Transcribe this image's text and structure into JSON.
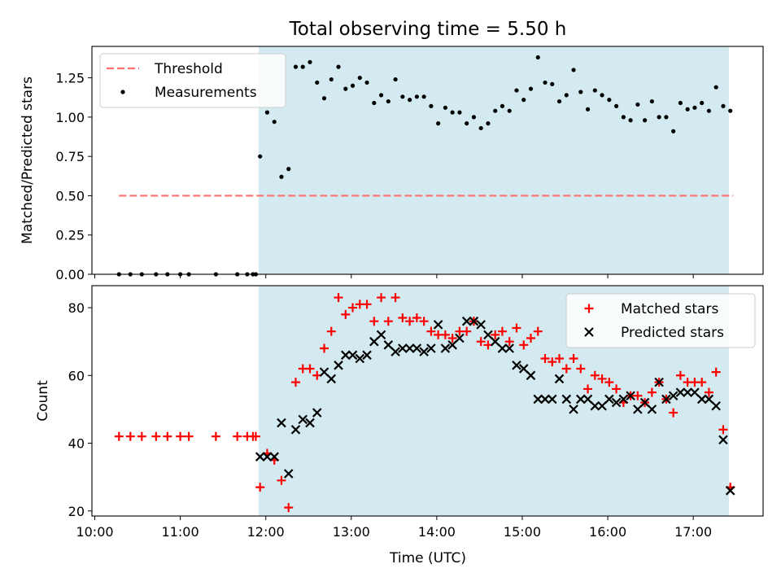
{
  "figure": {
    "title": "Total observing time = 5.50 h",
    "xlabel": "Time (UTC)",
    "shade_color": "#d3ebf0",
    "x_ticks": [
      "10:00",
      "11:00",
      "12:00",
      "13:00",
      "14:00",
      "15:00",
      "16:00",
      "17:00"
    ]
  },
  "chart_data": [
    {
      "type": "scatter",
      "ylabel": "Matched/Predicted stars",
      "ylim": [
        0,
        1.45
      ],
      "xlim": [
        "09:58",
        "17:49"
      ],
      "y_ticks": [
        "0.00",
        "0.25",
        "0.50",
        "0.75",
        "1.00",
        "1.25"
      ],
      "shaded_interval": [
        "11:55",
        "17:25"
      ],
      "legend": {
        "placement": "top-left"
      },
      "series": [
        {
          "name": "Threshold",
          "style": "dashed-line",
          "color": "#ff7070",
          "points": [
            [
              "10:17",
              0.5
            ],
            [
              "17:28",
              0.5
            ]
          ]
        },
        {
          "name": "Measurements",
          "style": "dot",
          "color": "#000000",
          "points": [
            [
              "10:17",
              0.0
            ],
            [
              "10:25",
              0.0
            ],
            [
              "10:33",
              0.0
            ],
            [
              "10:43",
              0.0
            ],
            [
              "10:51",
              0.0
            ],
            [
              "11:00",
              0.0
            ],
            [
              "11:06",
              0.0
            ],
            [
              "11:25",
              0.0
            ],
            [
              "11:40",
              0.0
            ],
            [
              "11:47",
              0.0
            ],
            [
              "11:51",
              0.0
            ],
            [
              "11:53",
              0.0
            ],
            [
              "11:56",
              0.75
            ],
            [
              "12:01",
              1.03
            ],
            [
              "12:06",
              0.97
            ],
            [
              "12:11",
              0.62
            ],
            [
              "12:16",
              0.67
            ],
            [
              "12:21",
              1.32
            ],
            [
              "12:26",
              1.32
            ],
            [
              "12:31",
              1.35
            ],
            [
              "12:36",
              1.22
            ],
            [
              "12:41",
              1.12
            ],
            [
              "12:46",
              1.24
            ],
            [
              "12:51",
              1.32
            ],
            [
              "12:56",
              1.18
            ],
            [
              "13:01",
              1.2
            ],
            [
              "13:06",
              1.25
            ],
            [
              "13:11",
              1.22
            ],
            [
              "13:16",
              1.09
            ],
            [
              "13:21",
              1.14
            ],
            [
              "13:26",
              1.1
            ],
            [
              "13:31",
              1.24
            ],
            [
              "13:36",
              1.13
            ],
            [
              "13:41",
              1.11
            ],
            [
              "13:46",
              1.13
            ],
            [
              "13:51",
              1.13
            ],
            [
              "13:56",
              1.07
            ],
            [
              "14:01",
              0.96
            ],
            [
              "14:06",
              1.06
            ],
            [
              "14:11",
              1.03
            ],
            [
              "14:16",
              1.03
            ],
            [
              "14:21",
              0.96
            ],
            [
              "14:26",
              1.0
            ],
            [
              "14:31",
              0.93
            ],
            [
              "14:36",
              0.96
            ],
            [
              "14:41",
              1.04
            ],
            [
              "14:46",
              1.07
            ],
            [
              "14:51",
              1.04
            ],
            [
              "14:56",
              1.17
            ],
            [
              "15:01",
              1.11
            ],
            [
              "15:06",
              1.18
            ],
            [
              "15:11",
              1.38
            ],
            [
              "15:16",
              1.22
            ],
            [
              "15:21",
              1.21
            ],
            [
              "15:26",
              1.1
            ],
            [
              "15:31",
              1.14
            ],
            [
              "15:36",
              1.3
            ],
            [
              "15:41",
              1.16
            ],
            [
              "15:46",
              1.05
            ],
            [
              "15:51",
              1.17
            ],
            [
              "15:56",
              1.14
            ],
            [
              "16:01",
              1.11
            ],
            [
              "16:06",
              1.07
            ],
            [
              "16:11",
              1.0
            ],
            [
              "16:16",
              0.98
            ],
            [
              "16:21",
              1.08
            ],
            [
              "16:26",
              0.98
            ],
            [
              "16:31",
              1.1
            ],
            [
              "16:36",
              1.0
            ],
            [
              "16:41",
              1.0
            ],
            [
              "16:46",
              0.91
            ],
            [
              "16:51",
              1.09
            ],
            [
              "16:56",
              1.05
            ],
            [
              "17:01",
              1.06
            ],
            [
              "17:06",
              1.09
            ],
            [
              "17:11",
              1.04
            ],
            [
              "17:16",
              1.19
            ],
            [
              "17:21",
              1.07
            ],
            [
              "17:26",
              1.04
            ]
          ]
        }
      ]
    },
    {
      "type": "scatter",
      "ylabel": "Count",
      "ylim": [
        18.5,
        86.5
      ],
      "xlim": [
        "09:58",
        "17:49"
      ],
      "y_ticks": [
        "20",
        "40",
        "60",
        "80"
      ],
      "shaded_interval": [
        "11:55",
        "17:25"
      ],
      "legend": {
        "placement": "top-right"
      },
      "series": [
        {
          "name": "Matched stars",
          "style": "plus",
          "color": "#ff0000",
          "points": [
            [
              "10:17",
              42
            ],
            [
              "10:25",
              42
            ],
            [
              "10:33",
              42
            ],
            [
              "10:43",
              42
            ],
            [
              "10:51",
              42
            ],
            [
              "11:00",
              42
            ],
            [
              "11:06",
              42
            ],
            [
              "11:25",
              42
            ],
            [
              "11:40",
              42
            ],
            [
              "11:47",
              42
            ],
            [
              "11:51",
              42
            ],
            [
              "11:53",
              42
            ],
            [
              "11:56",
              27
            ],
            [
              "12:01",
              37
            ],
            [
              "12:06",
              35
            ],
            [
              "12:11",
              29
            ],
            [
              "12:16",
              21
            ],
            [
              "12:21",
              58
            ],
            [
              "12:26",
              62
            ],
            [
              "12:31",
              62
            ],
            [
              "12:36",
              60
            ],
            [
              "12:41",
              68
            ],
            [
              "12:46",
              73
            ],
            [
              "12:51",
              83
            ],
            [
              "12:56",
              78
            ],
            [
              "13:01",
              80
            ],
            [
              "13:06",
              81
            ],
            [
              "13:11",
              81
            ],
            [
              "13:16",
              76
            ],
            [
              "13:21",
              83
            ],
            [
              "13:26",
              76
            ],
            [
              "13:31",
              83
            ],
            [
              "13:36",
              77
            ],
            [
              "13:41",
              76
            ],
            [
              "13:46",
              77
            ],
            [
              "13:51",
              76
            ],
            [
              "13:56",
              73
            ],
            [
              "14:01",
              72
            ],
            [
              "14:06",
              72
            ],
            [
              "14:11",
              71
            ],
            [
              "14:16",
              73
            ],
            [
              "14:21",
              73
            ],
            [
              "14:26",
              76
            ],
            [
              "14:31",
              70
            ],
            [
              "14:36",
              69
            ],
            [
              "14:41",
              72
            ],
            [
              "14:46",
              73
            ],
            [
              "14:51",
              70
            ],
            [
              "14:56",
              74
            ],
            [
              "15:01",
              69
            ],
            [
              "15:06",
              71
            ],
            [
              "15:11",
              73
            ],
            [
              "15:16",
              65
            ],
            [
              "15:21",
              64
            ],
            [
              "15:26",
              65
            ],
            [
              "15:31",
              62
            ],
            [
              "15:36",
              65
            ],
            [
              "15:41",
              62
            ],
            [
              "15:46",
              56
            ],
            [
              "15:51",
              60
            ],
            [
              "15:56",
              59
            ],
            [
              "16:01",
              58
            ],
            [
              "16:06",
              56
            ],
            [
              "16:11",
              52
            ],
            [
              "16:16",
              54
            ],
            [
              "16:21",
              54
            ],
            [
              "16:26",
              52
            ],
            [
              "16:31",
              55
            ],
            [
              "16:36",
              58
            ],
            [
              "16:41",
              53
            ],
            [
              "16:46",
              49
            ],
            [
              "16:51",
              60
            ],
            [
              "16:56",
              58
            ],
            [
              "17:01",
              58
            ],
            [
              "17:06",
              58
            ],
            [
              "17:11",
              55
            ],
            [
              "17:16",
              61
            ],
            [
              "17:21",
              44
            ],
            [
              "17:26",
              27
            ]
          ]
        },
        {
          "name": "Predicted stars",
          "style": "cross",
          "color": "#000000",
          "points": [
            [
              "11:56",
              36
            ],
            [
              "12:01",
              36
            ],
            [
              "12:06",
              36
            ],
            [
              "12:11",
              46
            ],
            [
              "12:16",
              31
            ],
            [
              "12:21",
              44
            ],
            [
              "12:26",
              47
            ],
            [
              "12:31",
              46
            ],
            [
              "12:36",
              49
            ],
            [
              "12:41",
              61
            ],
            [
              "12:46",
              59
            ],
            [
              "12:51",
              63
            ],
            [
              "12:56",
              66
            ],
            [
              "13:01",
              66
            ],
            [
              "13:06",
              65
            ],
            [
              "13:11",
              66
            ],
            [
              "13:16",
              70
            ],
            [
              "13:21",
              72
            ],
            [
              "13:26",
              69
            ],
            [
              "13:31",
              67
            ],
            [
              "13:36",
              68
            ],
            [
              "13:41",
              68
            ],
            [
              "13:46",
              68
            ],
            [
              "13:51",
              67
            ],
            [
              "13:56",
              68
            ],
            [
              "14:01",
              75
            ],
            [
              "14:06",
              68
            ],
            [
              "14:11",
              69
            ],
            [
              "14:16",
              71
            ],
            [
              "14:21",
              76
            ],
            [
              "14:26",
              76
            ],
            [
              "14:31",
              75
            ],
            [
              "14:36",
              72
            ],
            [
              "14:41",
              70
            ],
            [
              "14:46",
              68
            ],
            [
              "14:51",
              68
            ],
            [
              "14:56",
              63
            ],
            [
              "15:01",
              62
            ],
            [
              "15:06",
              60
            ],
            [
              "15:11",
              53
            ],
            [
              "15:16",
              53
            ],
            [
              "15:21",
              53
            ],
            [
              "15:26",
              59
            ],
            [
              "15:31",
              53
            ],
            [
              "15:36",
              50
            ],
            [
              "15:41",
              53
            ],
            [
              "15:46",
              53
            ],
            [
              "15:51",
              51
            ],
            [
              "15:56",
              51
            ],
            [
              "16:01",
              53
            ],
            [
              "16:06",
              52
            ],
            [
              "16:11",
              53
            ],
            [
              "16:16",
              54
            ],
            [
              "16:21",
              50
            ],
            [
              "16:26",
              52
            ],
            [
              "16:31",
              50
            ],
            [
              "16:36",
              58
            ],
            [
              "16:41",
              53
            ],
            [
              "16:46",
              54
            ],
            [
              "16:51",
              55
            ],
            [
              "16:56",
              55
            ],
            [
              "17:01",
              55
            ],
            [
              "17:06",
              53
            ],
            [
              "17:11",
              53
            ],
            [
              "17:16",
              51
            ],
            [
              "17:21",
              41
            ],
            [
              "17:26",
              26
            ]
          ]
        }
      ]
    }
  ]
}
